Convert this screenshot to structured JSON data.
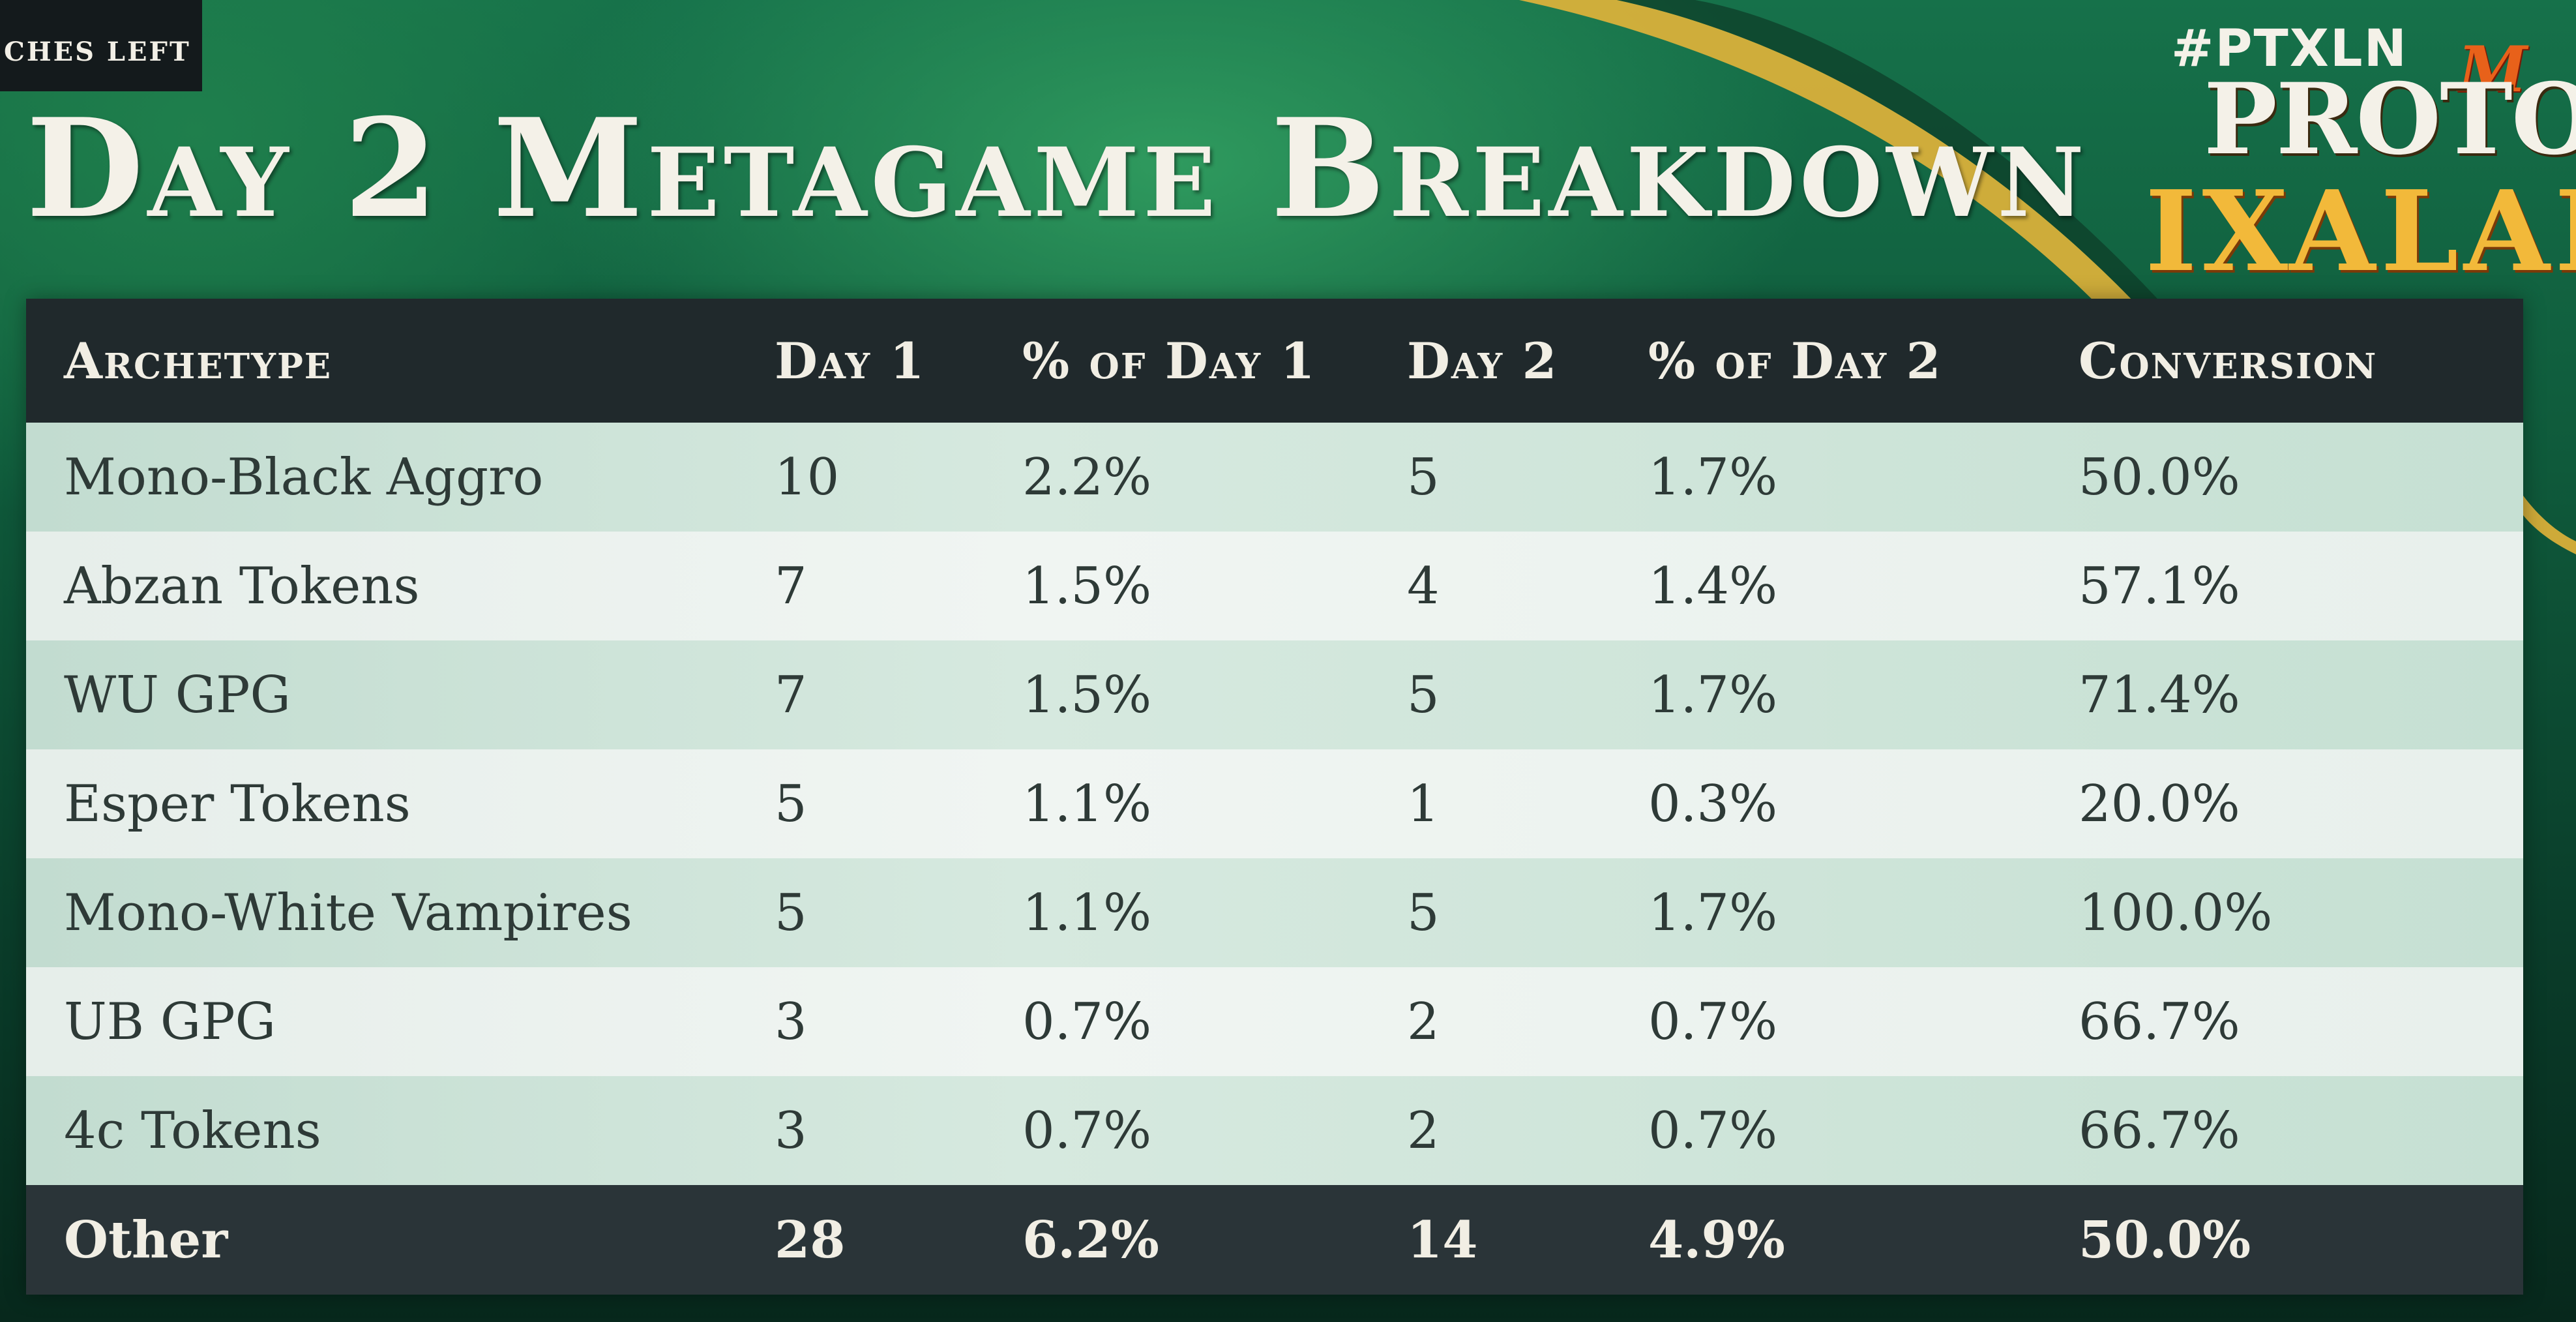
{
  "top_tag": "CHES LEFT",
  "title": "Day 2 Metagame Breakdown",
  "hashtag": "#PTXLN",
  "logo": {
    "mtg": "M",
    "line1": "PROTOUR",
    "line2": "IXALAN"
  },
  "colors": {
    "background_green": "#16714a",
    "header_bar": "#20292c",
    "gold_accent": "#f2b93a"
  },
  "table": {
    "headers": [
      "Archetype",
      "Day 1",
      "% of Day 1",
      "Day 2",
      "% of Day 2",
      "Conversion"
    ],
    "rows": [
      [
        "Mono-Black Aggro",
        "10",
        "2.2%",
        "5",
        "1.7%",
        "50.0%"
      ],
      [
        "Abzan Tokens",
        "7",
        "1.5%",
        "4",
        "1.4%",
        "57.1%"
      ],
      [
        "WU GPG",
        "7",
        "1.5%",
        "5",
        "1.7%",
        "71.4%"
      ],
      [
        "Esper Tokens",
        "5",
        "1.1%",
        "1",
        "0.3%",
        "20.0%"
      ],
      [
        "Mono-White Vampires",
        "5",
        "1.1%",
        "5",
        "1.7%",
        "100.0%"
      ],
      [
        "UB GPG",
        "3",
        "0.7%",
        "2",
        "0.7%",
        "66.7%"
      ],
      [
        "4c Tokens",
        "3",
        "0.7%",
        "2",
        "0.7%",
        "66.7%"
      ]
    ],
    "footer": [
      "Other",
      "28",
      "6.2%",
      "14",
      "4.9%",
      "50.0%"
    ]
  }
}
